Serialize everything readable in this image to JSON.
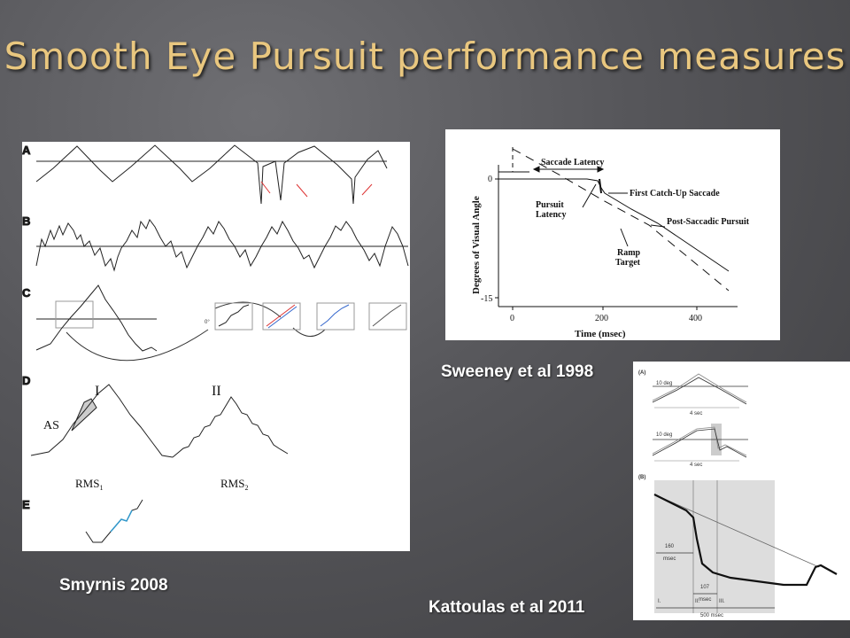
{
  "slide": {
    "title": "Smooth Eye Pursuit performance measures"
  },
  "smyrnis": {
    "caption": "Smyrnis 2008",
    "row_labels": [
      "A",
      "B",
      "C",
      "D",
      "E"
    ],
    "roman_labels": [
      "I",
      "II"
    ],
    "as_label": "AS",
    "rms1_label": "RMS",
    "rms1_sub": "1",
    "rms2_label": "RMS",
    "rms2_sub": "2",
    "deg0_label": "0°"
  },
  "sweeney": {
    "caption": "Sweeney et al 1998",
    "ylabel": "Degrees of Visual Angle",
    "xlabel": "Time (msec)",
    "y_ticks": [
      "0",
      "-15"
    ],
    "x_ticks": [
      "0",
      "200",
      "400"
    ],
    "annotations": {
      "saccade_latency": "Saccade Latency",
      "pursuit": "Pursuit",
      "latency": "Latency",
      "first_catchup": "First Catch-Up Saccade",
      "post_saccadic": "Post-Saccadic Pursuit",
      "ramp": "Ramp",
      "target": "Target"
    }
  },
  "kattoulas": {
    "caption": "Kattoulas et al 2011",
    "panel_a": "(A)",
    "panel_b": "(B)",
    "deg_label": "10 deg",
    "sec_label": "4 sec",
    "msec160": "160",
    "msec107": "107",
    "msec_unit": "msec",
    "phases": [
      "I.",
      "II.",
      "III."
    ],
    "total": "500 msec"
  }
}
